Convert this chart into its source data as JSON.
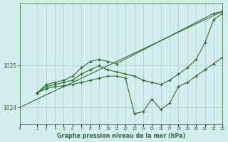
{
  "title": "Graphe pression niveau de la mer (hPa)",
  "background_color": "#d4eef0",
  "grid_color": "#b0cccc",
  "line_color": "#2d6e2d",
  "xlim": [
    0,
    23
  ],
  "ylim": [
    1023.6,
    1026.5
  ],
  "yticks": [
    1024,
    1025
  ],
  "xtick_labels": [
    "0",
    "2",
    "3",
    "4",
    "5",
    "6",
    "7",
    "8",
    "9",
    "10",
    "11",
    "12",
    "13",
    "14",
    "15",
    "16",
    "17",
    "18",
    "19",
    "20",
    "21",
    "22",
    "23"
  ],
  "xtick_positions": [
    0,
    2,
    3,
    4,
    5,
    6,
    7,
    8,
    9,
    10,
    11,
    12,
    13,
    14,
    15,
    16,
    17,
    18,
    19,
    20,
    21,
    22,
    23
  ],
  "series": [
    {
      "x": [
        0,
        23
      ],
      "y": [
        1024.0,
        1026.3
      ],
      "has_markers": false
    },
    {
      "x": [
        2,
        3,
        4,
        5,
        6,
        7,
        8,
        9,
        10,
        11,
        22,
        23
      ],
      "y": [
        1024.35,
        1024.55,
        1024.6,
        1024.65,
        1024.75,
        1024.95,
        1025.1,
        1025.15,
        1025.1,
        1025.05,
        1026.25,
        1026.3
      ],
      "has_markers": true
    },
    {
      "x": [
        2,
        3,
        4,
        5,
        6,
        7,
        8,
        9,
        10,
        11,
        12,
        13,
        14,
        15,
        16,
        17,
        18,
        19,
        20,
        21,
        22,
        23
      ],
      "y": [
        1024.35,
        1024.5,
        1024.55,
        1024.6,
        1024.65,
        1024.8,
        1024.9,
        1025.0,
        1024.9,
        1024.85,
        1024.8,
        1024.75,
        1024.65,
        1024.6,
        1024.55,
        1024.65,
        1024.8,
        1024.95,
        1025.15,
        1025.55,
        1026.1,
        1026.25
      ],
      "has_markers": true
    },
    {
      "x": [
        2,
        3,
        4,
        5,
        6,
        7,
        8,
        9,
        10,
        11,
        12,
        13,
        14,
        15,
        16,
        17,
        18,
        19,
        20,
        21,
        22,
        23
      ],
      "y": [
        1024.35,
        1024.45,
        1024.5,
        1024.52,
        1024.55,
        1024.6,
        1024.65,
        1024.7,
        1024.75,
        1024.75,
        1024.7,
        1023.85,
        1023.9,
        1024.2,
        1023.95,
        1024.1,
        1024.5,
        1024.6,
        1024.75,
        1024.9,
        1025.05,
        1025.2
      ],
      "has_markers": true
    }
  ]
}
